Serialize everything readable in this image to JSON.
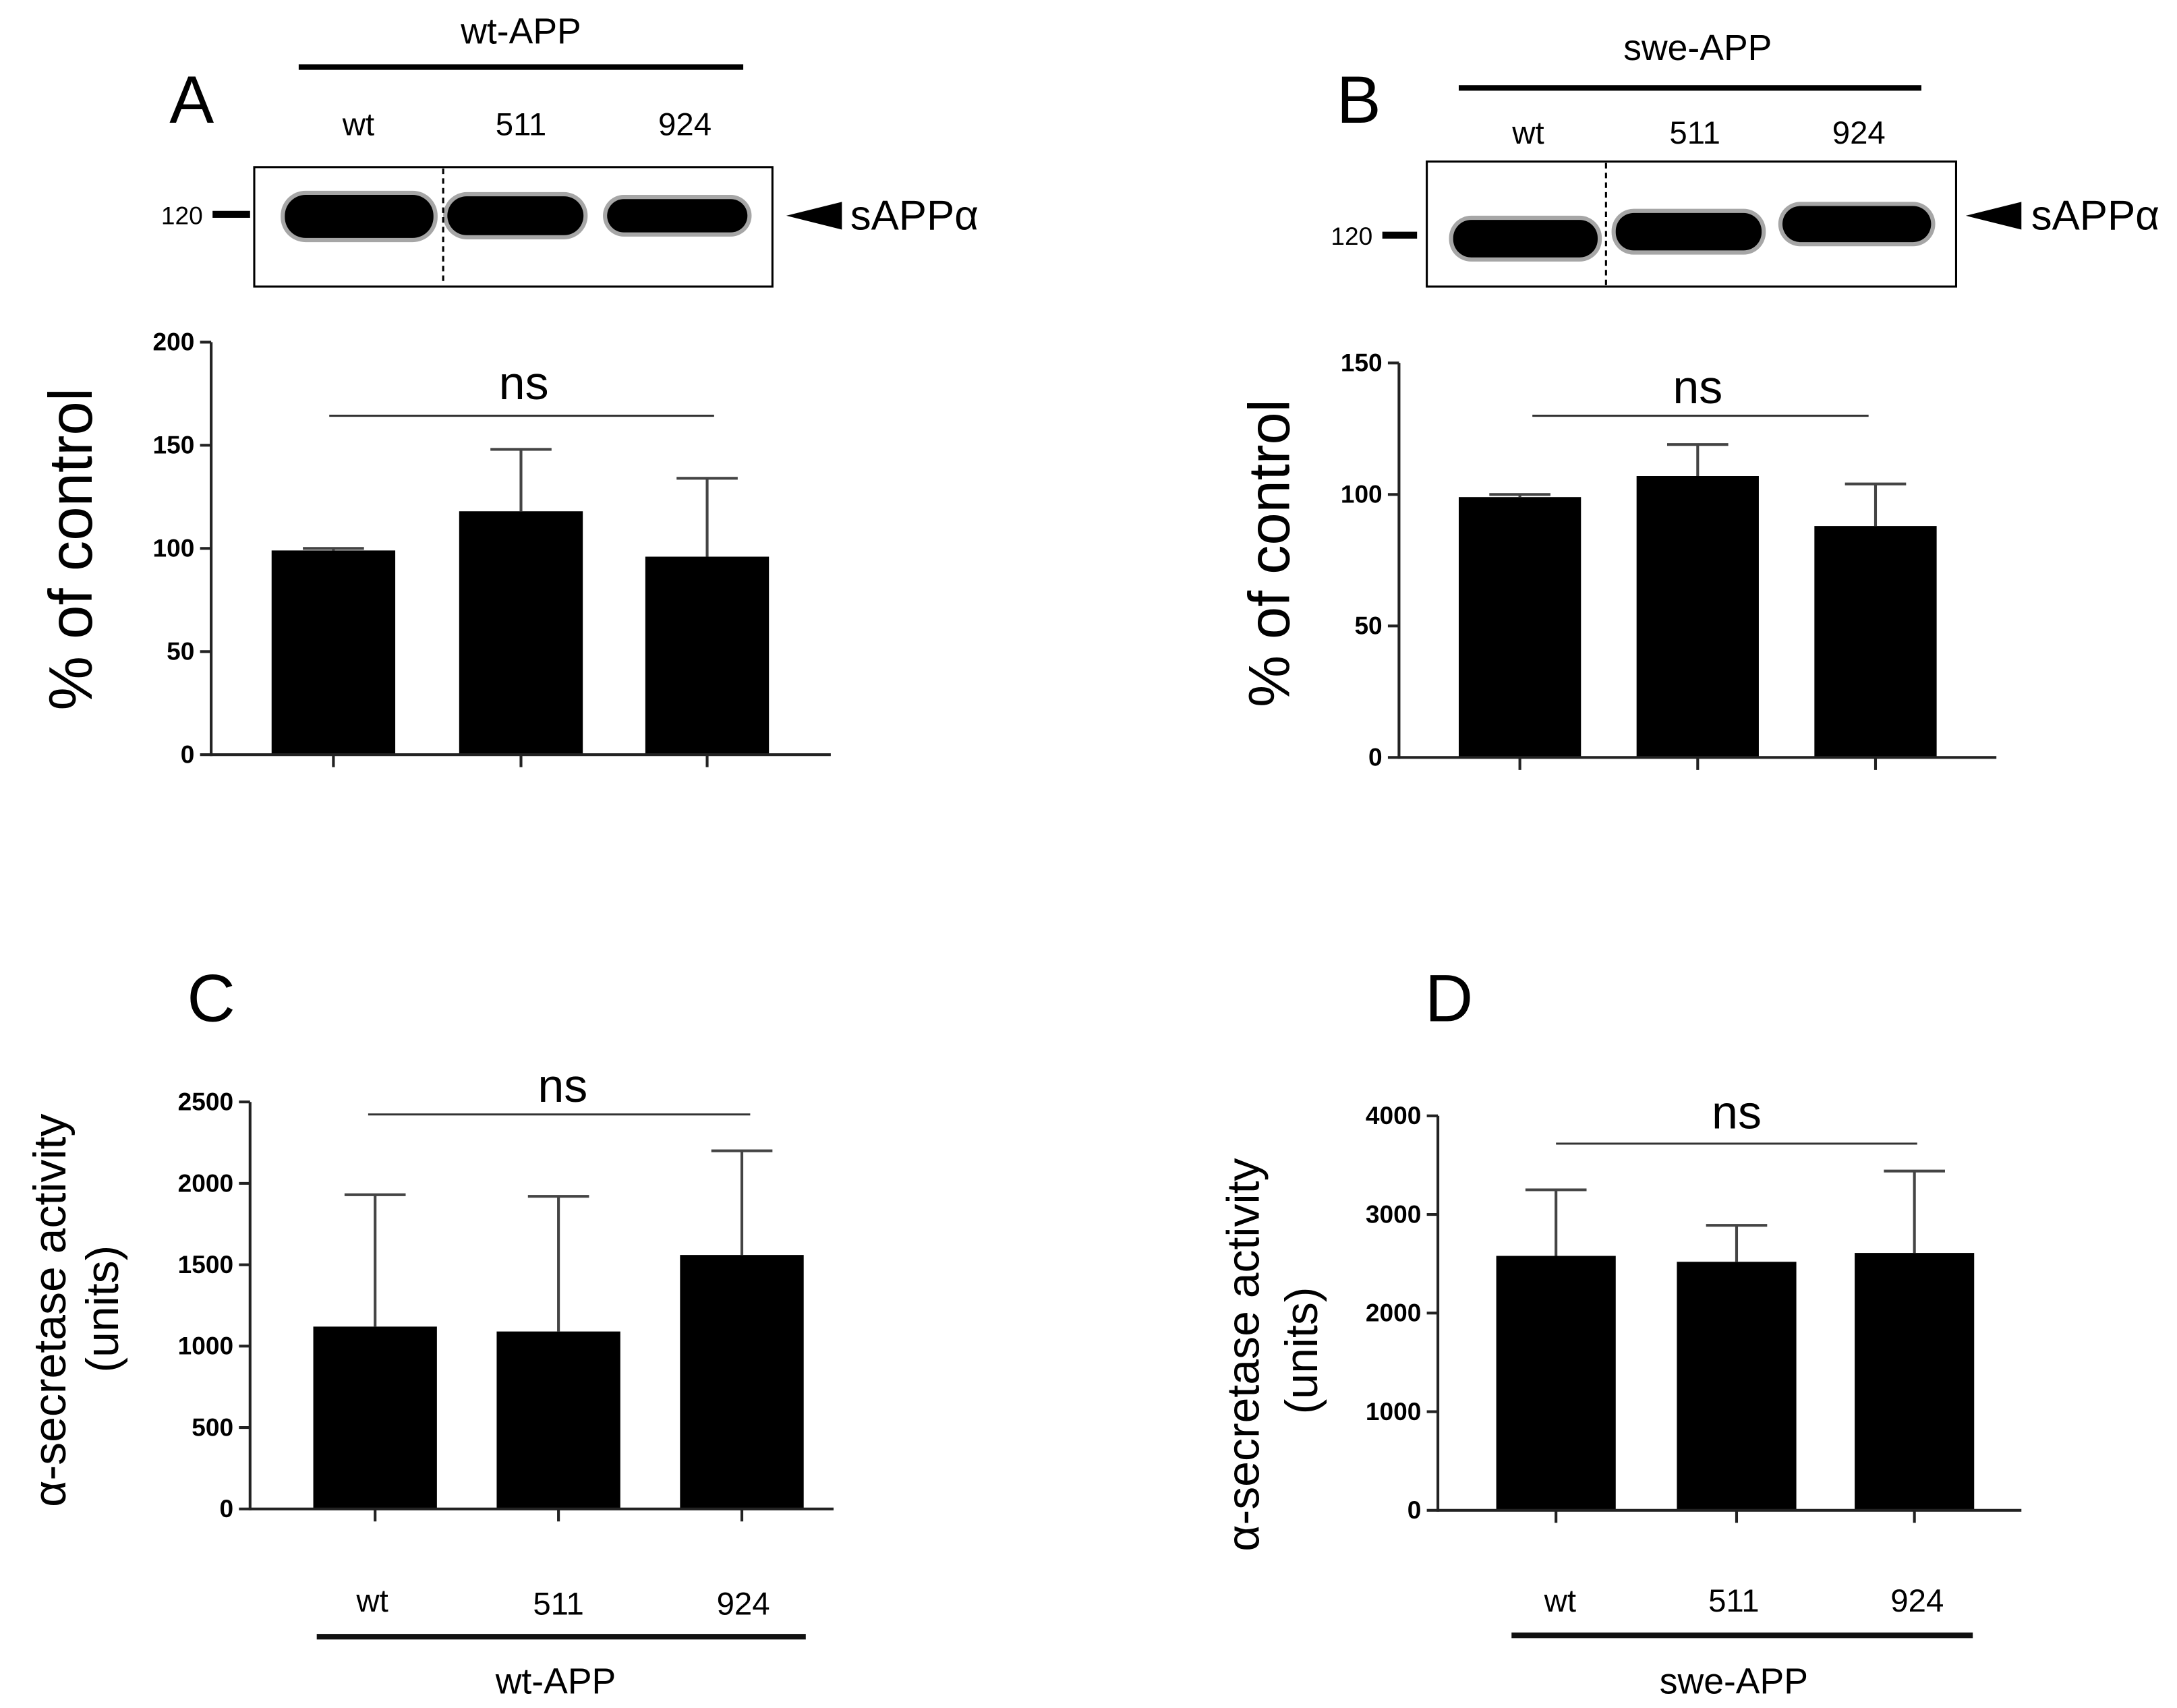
{
  "colors": {
    "bar": "#000000",
    "error": "#444444",
    "axis": "#222222",
    "blot_band": "#000000"
  },
  "blots": [
    {
      "marker": "120",
      "band": "sAPPα"
    },
    {
      "marker": "120",
      "band": "sAPPα"
    }
  ],
  "chart_data": [
    {
      "panel": "A",
      "type": "bar",
      "group": "wt-APP",
      "categories": [
        "wt",
        "511",
        "924"
      ],
      "values": [
        99,
        118,
        96
      ],
      "errors": [
        1,
        30,
        38
      ],
      "ylabel": "% of control",
      "ylim": [
        0,
        200
      ],
      "yticks": [
        0,
        50,
        100,
        150,
        200
      ],
      "annotation": "ns"
    },
    {
      "panel": "B",
      "type": "bar",
      "group": "swe-APP",
      "categories": [
        "wt",
        "511",
        "924"
      ],
      "values": [
        99,
        107,
        88
      ],
      "errors": [
        1,
        12,
        16
      ],
      "ylabel": "% of control",
      "ylim": [
        0,
        150
      ],
      "yticks": [
        0,
        50,
        100,
        150
      ],
      "annotation": "ns"
    },
    {
      "panel": "C",
      "type": "bar",
      "group": "wt-APP",
      "categories": [
        "wt",
        "511",
        "924"
      ],
      "values": [
        1120,
        1090,
        1560
      ],
      "errors": [
        810,
        830,
        640
      ],
      "ylabel": "α-secretase activity",
      "ylabel_units": "(units)",
      "ylim": [
        0,
        2500
      ],
      "yticks": [
        0,
        500,
        1000,
        1500,
        2000,
        2500
      ],
      "annotation": "ns"
    },
    {
      "panel": "D",
      "type": "bar",
      "group": "swe-APP",
      "categories": [
        "wt",
        "511",
        "924"
      ],
      "values": [
        2580,
        2520,
        2610
      ],
      "errors": [
        670,
        370,
        830
      ],
      "ylabel": "α-secretase activity",
      "ylabel_units": "(units)",
      "ylim": [
        0,
        4000
      ],
      "yticks": [
        0,
        1000,
        2000,
        3000,
        4000
      ],
      "annotation": "ns"
    }
  ]
}
